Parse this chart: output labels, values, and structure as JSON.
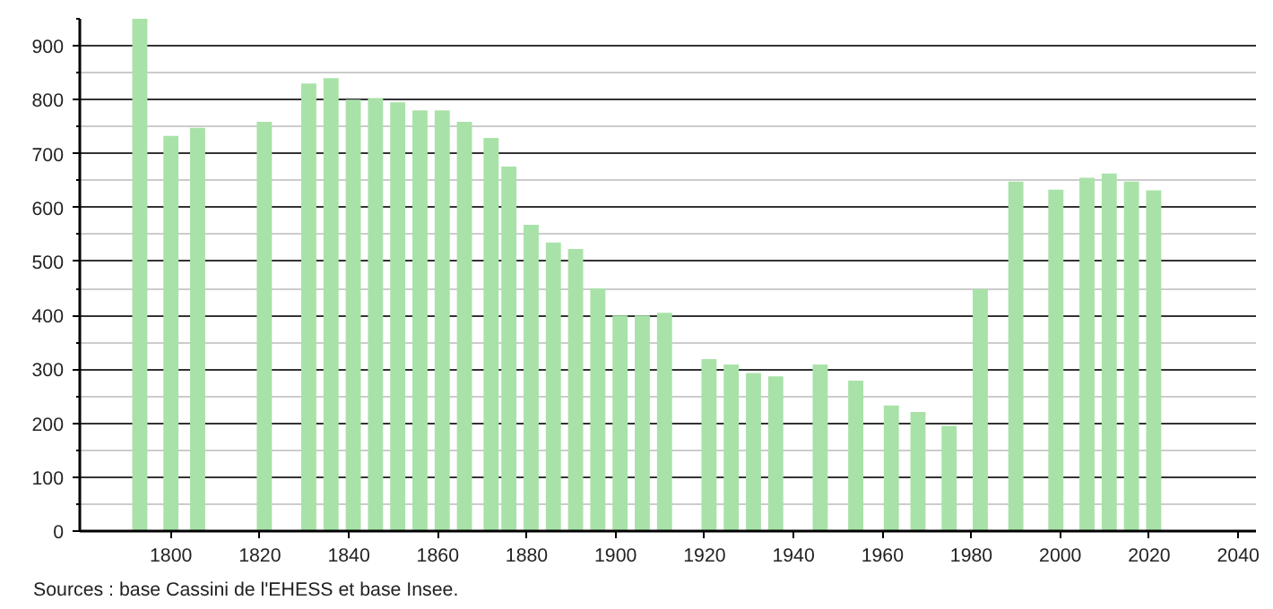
{
  "chart_data": {
    "type": "bar",
    "color": "#a8e2a8",
    "x": [
      1793,
      1800,
      1806,
      1821,
      1831,
      1836,
      1841,
      1846,
      1851,
      1856,
      1861,
      1866,
      1872,
      1876,
      1881,
      1886,
      1891,
      1896,
      1901,
      1906,
      1911,
      1921,
      1926,
      1931,
      1936,
      1946,
      1954,
      1962,
      1968,
      1975,
      1982,
      1990,
      1999,
      2006,
      2011,
      2016,
      2021
    ],
    "values": [
      950,
      733,
      748,
      759,
      830,
      840,
      800,
      803,
      795,
      780,
      780,
      759,
      729,
      676,
      568,
      535,
      523,
      450,
      400,
      400,
      405,
      319,
      309,
      293,
      287,
      309,
      279,
      233,
      221,
      195,
      449,
      648,
      633,
      655,
      663,
      648,
      632
    ],
    "xlim": [
      1779.5,
      2044
    ],
    "xticks": [
      1800,
      1820,
      1840,
      1860,
      1880,
      1900,
      1920,
      1940,
      1960,
      1980,
      2000,
      2020,
      2040
    ],
    "ylim": [
      0,
      950
    ],
    "yticks": [
      0,
      {
        "value": 50,
        "label": null
      },
      100,
      {
        "value": 150,
        "label": null
      },
      200,
      {
        "value": 250,
        "label": null
      },
      300,
      {
        "value": 350,
        "label": null
      },
      400,
      {
        "value": 450,
        "label": null
      },
      500,
      {
        "value": 550,
        "label": null
      },
      600,
      {
        "value": 650,
        "label": null
      },
      700,
      {
        "value": 750,
        "label": null
      },
      800,
      {
        "value": 850,
        "label": null
      },
      900,
      {
        "value": 950,
        "label": null
      }
    ],
    "grid": "y",
    "annotations": [
      "Sources : base Cassini de l'EHESS et base Insee."
    ]
  }
}
